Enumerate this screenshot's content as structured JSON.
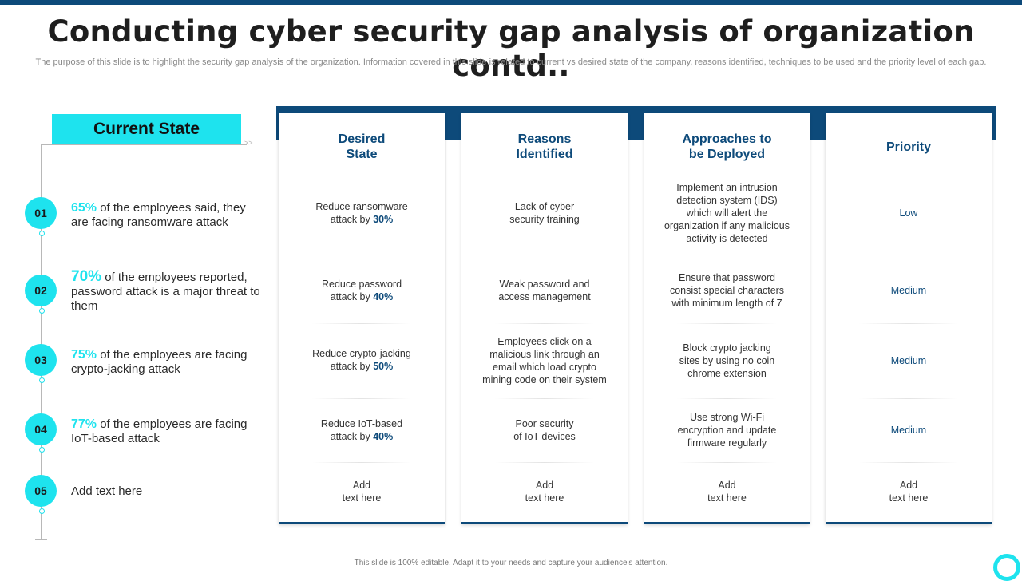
{
  "title": "Conducting cyber security gap analysis of organization contd..",
  "subtitle": "The purpose of this slide is to highlight the security gap analysis of the organization. Information covered in this slide is related to current vs  desired state of the company, reasons identified, techniques to be used and the priority level of each gap.",
  "current_state": {
    "header": "Current State",
    "items": [
      {
        "num": "01",
        "pct": "65%",
        "text": " of the employees said, they are facing ransomware attack"
      },
      {
        "num": "02",
        "pct": "70%",
        "text": " of the employees reported, password attack is a major threat to them"
      },
      {
        "num": "03",
        "pct": "75%",
        "text": " of the employees are facing crypto-jacking attack"
      },
      {
        "num": "04",
        "pct": "77%",
        "text": " of the employees are facing IoT-based attack"
      },
      {
        "num": "05",
        "pct": "",
        "text": "Add text here"
      }
    ]
  },
  "columns": {
    "desired": {
      "header": "Desired\nState",
      "rows": [
        {
          "text": "Reduce ransomware\nattack by ",
          "highlight": "30%"
        },
        {
          "text": "Reduce password\nattack  by ",
          "highlight": "40%"
        },
        {
          "text": "Reduce crypto-jacking\nattack by ",
          "highlight": "50%"
        },
        {
          "text": "Reduce IoT-based\nattack by ",
          "highlight": "40%"
        },
        {
          "text": "Add\ntext here",
          "highlight": ""
        }
      ]
    },
    "reasons": {
      "header": "Reasons\nIdentified",
      "rows": [
        "Lack of cyber\nsecurity training",
        "Weak password and\naccess management",
        "Employees click on a\nmalicious link through an\nemail which load crypto\nmining code on their system",
        "Poor security\nof IoT devices",
        "Add\ntext here"
      ]
    },
    "approaches": {
      "header": "Approaches to\nbe Deployed",
      "rows": [
        "Implement  an intrusion\ndetection system (IDS)\nwhich will alert the\norganization  if any malicious\nactivity is detected",
        "Ensure that password\nconsist special characters\nwith minimum length  of 7",
        "Block crypto jacking\nsites by using no coin\nchrome extension",
        "Use strong Wi-Fi\nencryption and update\nfirmware  regularly",
        "Add\ntext here"
      ]
    },
    "priority": {
      "header": "Priority",
      "rows": [
        "Low",
        "Medium",
        "Medium",
        "Medium",
        "Add\ntext here"
      ]
    }
  },
  "footer": "This slide is 100% editable.  Adapt it to your needs and capture your audience's attention.",
  "colors": {
    "accent": "#1ee3ee",
    "navy": "#0d4a7a"
  }
}
